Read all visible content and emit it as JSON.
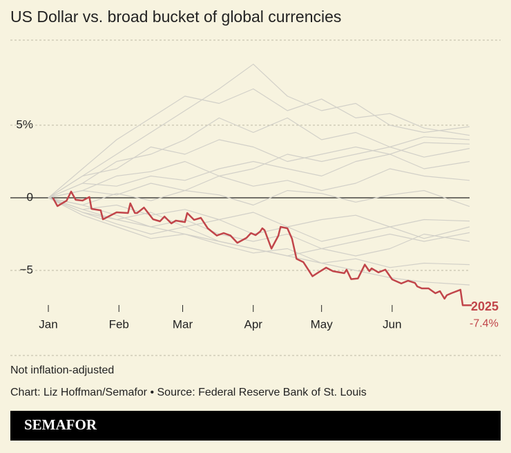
{
  "chart_data": {
    "type": "line",
    "title": "US Dollar vs. broad bucket of global currencies",
    "note": "Not inflation-adjusted",
    "credit": "Chart: Liz Hoffman/Semafor • Source: Federal Reserve Bank of St. Louis",
    "brand": "SEMAFOR",
    "xlim": [
      0,
      185
    ],
    "xticks": [
      {
        "value": 0,
        "label": "Jan"
      },
      {
        "value": 31,
        "label": "Feb"
      },
      {
        "value": 59,
        "label": "Mar"
      },
      {
        "value": 90,
        "label": "Apr"
      },
      {
        "value": 120,
        "label": "May"
      },
      {
        "value": 151,
        "label": "Jun"
      }
    ],
    "ylim": [
      -8,
      11
    ],
    "yticks": [
      {
        "value": 5,
        "label": "5%"
      },
      0,
      {
        "value": -5,
        "label": "−5"
      }
    ],
    "series": [
      {
        "color": "#d2d0c8",
        "x": [
          0,
          15,
          30,
          45,
          60,
          75,
          90,
          105,
          120,
          135,
          150,
          165,
          185
        ],
        "values": [
          0,
          1.5,
          3,
          4.5,
          6,
          7.5,
          9.2,
          7,
          6,
          6.5,
          5,
          4.5,
          4.9
        ]
      },
      {
        "color": "#d2d0c8",
        "x": [
          0,
          15,
          30,
          45,
          60,
          75,
          90,
          105,
          120,
          135,
          150,
          165,
          185
        ],
        "values": [
          0,
          2,
          4,
          5.5,
          7,
          6.5,
          7.5,
          6,
          6.8,
          5.5,
          5.8,
          4.8,
          4.3
        ]
      },
      {
        "color": "#d2d0c8",
        "x": [
          0,
          15,
          30,
          45,
          60,
          75,
          90,
          105,
          120,
          135,
          150,
          165,
          185
        ],
        "values": [
          0,
          1,
          2.5,
          3,
          4,
          5.5,
          4.5,
          5.5,
          4,
          4.5,
          3.5,
          4.2,
          4.0
        ]
      },
      {
        "color": "#d2d0c8",
        "x": [
          0,
          15,
          30,
          45,
          60,
          75,
          90,
          105,
          120,
          135,
          150,
          165,
          185
        ],
        "values": [
          0,
          1.5,
          2,
          3.5,
          3,
          4,
          3.5,
          2.5,
          3,
          3.5,
          3,
          3.8,
          3.7
        ]
      },
      {
        "color": "#d2d0c8",
        "x": [
          0,
          15,
          30,
          45,
          60,
          75,
          90,
          105,
          120,
          135,
          150,
          165,
          185
        ],
        "values": [
          0,
          0.5,
          1.5,
          1.8,
          2.5,
          1.5,
          2,
          3,
          2.5,
          3,
          3.5,
          2.8,
          3.4
        ]
      },
      {
        "color": "#d2d0c8",
        "x": [
          0,
          15,
          30,
          45,
          60,
          75,
          90,
          105,
          120,
          135,
          150,
          165,
          185
        ],
        "values": [
          0,
          1,
          0.8,
          1.5,
          1.2,
          2,
          2.5,
          2,
          1.5,
          2.5,
          3,
          2,
          2.5
        ]
      },
      {
        "color": "#d2d0c8",
        "x": [
          0,
          15,
          30,
          45,
          60,
          75,
          90,
          105,
          120,
          135,
          150,
          165,
          185
        ],
        "values": [
          0,
          0.5,
          0.2,
          1,
          0.5,
          1.5,
          0.8,
          1.2,
          0.5,
          1,
          2,
          1.5,
          1.2
        ]
      },
      {
        "color": "#d2d0c8",
        "x": [
          0,
          15,
          30,
          45,
          60,
          75,
          90,
          105,
          120,
          135,
          150,
          165,
          185
        ],
        "values": [
          0,
          -0.5,
          0.3,
          -0.2,
          0.5,
          0.2,
          -0.5,
          0.5,
          0.3,
          -0.3,
          0.2,
          0.5,
          -0.6
        ]
      },
      {
        "color": "#d2d0c8",
        "x": [
          0,
          15,
          30,
          45,
          60,
          75,
          90,
          105,
          120,
          135,
          150,
          165,
          185
        ],
        "values": [
          0,
          -0.8,
          -0.5,
          -1.2,
          -0.8,
          -1.5,
          -1,
          -2,
          -1.5,
          -1.2,
          -2,
          -1.5,
          -1.6
        ]
      },
      {
        "color": "#d2d0c8",
        "x": [
          0,
          15,
          30,
          45,
          60,
          75,
          90,
          105,
          120,
          135,
          150,
          165,
          185
        ],
        "values": [
          0,
          -1,
          -1.5,
          -1,
          -2,
          -1.5,
          -2.5,
          -2,
          -3,
          -2.5,
          -2,
          -2.8,
          -2.0
        ]
      },
      {
        "color": "#d2d0c8",
        "x": [
          0,
          15,
          30,
          45,
          60,
          75,
          90,
          105,
          120,
          135,
          150,
          165,
          185
        ],
        "values": [
          0,
          -0.5,
          -1.2,
          -2,
          -1.5,
          -2.5,
          -3,
          -2.5,
          -3.5,
          -3,
          -2.5,
          -3,
          -2.4
        ]
      },
      {
        "color": "#d2d0c8",
        "x": [
          0,
          15,
          30,
          45,
          60,
          75,
          90,
          105,
          120,
          135,
          150,
          165,
          185
        ],
        "values": [
          0,
          -1,
          -1.8,
          -2.5,
          -2,
          -3,
          -3.5,
          -4,
          -3.5,
          -4,
          -3.5,
          -2.5,
          -3.0
        ]
      },
      {
        "color": "#d2d0c8",
        "x": [
          0,
          15,
          30,
          45,
          60,
          75,
          90,
          105,
          120,
          135,
          150,
          165,
          185
        ],
        "values": [
          0,
          -1.2,
          -2,
          -2.8,
          -2.5,
          -3.2,
          -3.8,
          -3.5,
          -4.5,
          -4.2,
          -4.8,
          -4.5,
          -4.6
        ]
      },
      {
        "color": "#d2d0c8",
        "x": [
          0,
          15,
          30,
          45,
          60,
          75,
          90,
          105,
          120,
          135,
          150,
          165,
          185
        ],
        "values": [
          0,
          -0.8,
          -1.5,
          -2,
          -2.5,
          -3,
          -3.5,
          -4,
          -4.5,
          -5,
          -5.5,
          -5.8,
          -6.0
        ]
      },
      {
        "name": "2025",
        "color": "#c1454a",
        "end_label": "-7.4%",
        "x": [
          2,
          4,
          8,
          10,
          12,
          15,
          18,
          19,
          23,
          24,
          30,
          35,
          36,
          38,
          39,
          42,
          46,
          49,
          51,
          54,
          56,
          60,
          61,
          64,
          67,
          70,
          74,
          77,
          80,
          83,
          87,
          89,
          91,
          93,
          94,
          95,
          98,
          101,
          102,
          105,
          107,
          109,
          112,
          113,
          116,
          119,
          122,
          125,
          130,
          131,
          133,
          136,
          139,
          141,
          142,
          145,
          148,
          151,
          155,
          158,
          161,
          162,
          164,
          167,
          170,
          172,
          174,
          175,
          177,
          181,
          182,
          186
        ],
        "values": [
          0,
          -0.57,
          -0.2,
          0.43,
          -0.14,
          -0.19,
          0.05,
          -0.76,
          -0.86,
          -1.48,
          -1.0,
          -1.05,
          -0.38,
          -1.05,
          -1.05,
          -0.67,
          -1.48,
          -1.62,
          -1.29,
          -1.76,
          -1.57,
          -1.67,
          -1.05,
          -1.52,
          -1.38,
          -2.1,
          -2.6,
          -2.43,
          -2.6,
          -3.1,
          -2.76,
          -2.43,
          -2.57,
          -2.33,
          -2.1,
          -2.24,
          -3.5,
          -2.62,
          -2.0,
          -2.1,
          -2.81,
          -4.2,
          -4.43,
          -4.67,
          -5.4,
          -5.1,
          -4.81,
          -5.05,
          -5.19,
          -4.95,
          -5.6,
          -5.55,
          -4.6,
          -5.05,
          -4.86,
          -5.14,
          -4.95,
          -5.62,
          -5.9,
          -5.71,
          -5.86,
          -6.1,
          -6.24,
          -6.24,
          -6.57,
          -6.43,
          -6.95,
          -6.71,
          -6.57,
          -6.33,
          -7.4,
          -7.4
        ]
      }
    ]
  }
}
